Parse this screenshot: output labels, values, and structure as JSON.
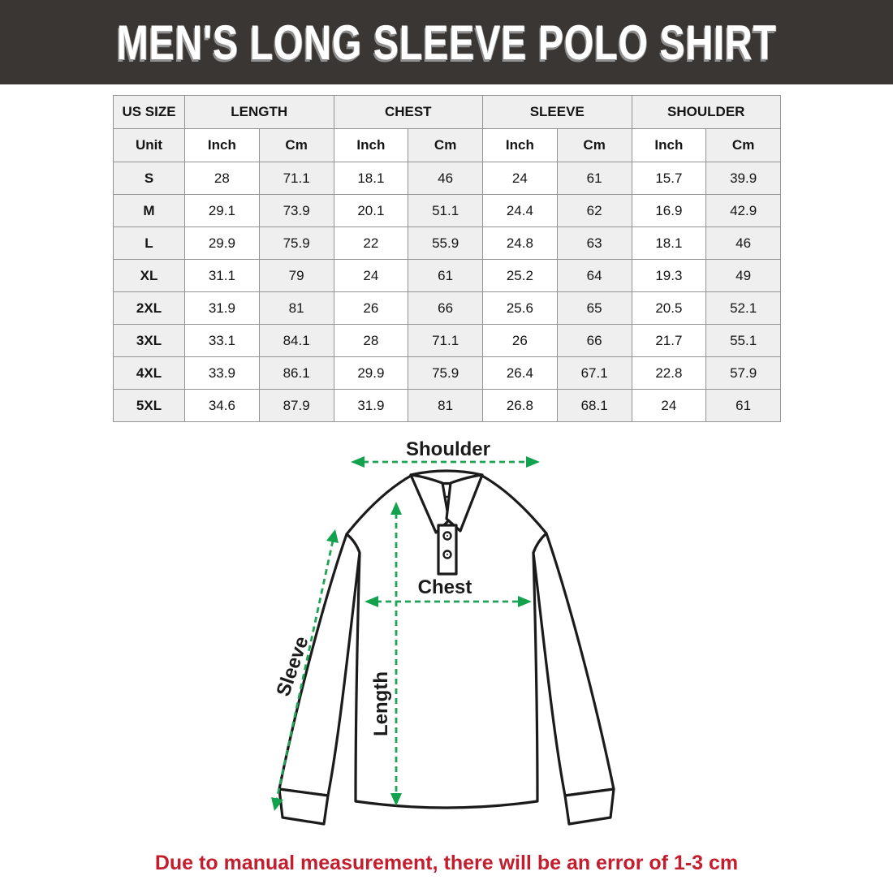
{
  "title": "MEN'S LONG SLEEVE POLO SHIRT",
  "table": {
    "size_header": "US SIZE",
    "unit_label": "Unit",
    "groups": [
      {
        "label": "LENGTH"
      },
      {
        "label": "CHEST"
      },
      {
        "label": "SLEEVE"
      },
      {
        "label": "SHOULDER"
      }
    ],
    "unit_columns": [
      "Inch",
      "Cm",
      "Inch",
      "Cm",
      "Inch",
      "Cm",
      "Inch",
      "Cm"
    ],
    "rows": [
      {
        "size": "S",
        "values": [
          "28",
          "71.1",
          "18.1",
          "46",
          "24",
          "61",
          "15.7",
          "39.9"
        ]
      },
      {
        "size": "M",
        "values": [
          "29.1",
          "73.9",
          "20.1",
          "51.1",
          "24.4",
          "62",
          "16.9",
          "42.9"
        ]
      },
      {
        "size": "L",
        "values": [
          "29.9",
          "75.9",
          "22",
          "55.9",
          "24.8",
          "63",
          "18.1",
          "46"
        ]
      },
      {
        "size": "XL",
        "values": [
          "31.1",
          "79",
          "24",
          "61",
          "25.2",
          "64",
          "19.3",
          "49"
        ]
      },
      {
        "size": "2XL",
        "values": [
          "31.9",
          "81",
          "26",
          "66",
          "25.6",
          "65",
          "20.5",
          "52.1"
        ]
      },
      {
        "size": "3XL",
        "values": [
          "33.1",
          "84.1",
          "28",
          "71.1",
          "26",
          "66",
          "21.7",
          "55.1"
        ]
      },
      {
        "size": "4XL",
        "values": [
          "33.9",
          "86.1",
          "29.9",
          "75.9",
          "26.4",
          "67.1",
          "22.8",
          "57.9"
        ]
      },
      {
        "size": "5XL",
        "values": [
          "34.6",
          "87.9",
          "31.9",
          "81",
          "26.8",
          "68.1",
          "24",
          "61"
        ]
      }
    ]
  },
  "diagram": {
    "labels": {
      "shoulder": "Shoulder",
      "chest": "Chest",
      "sleeve": "Sleeve",
      "length": "Length"
    },
    "arrow_color": "#1fa355",
    "outline_color": "#1b1b1b"
  },
  "note": "Due to manual measurement, there will be an error of 1-3 cm",
  "colors": {
    "banner_bg": "#3a3634",
    "banner_text": "#ffffff",
    "note_text": "#c41d2e",
    "stripe_bg": "#efefef",
    "table_border": "#949494"
  }
}
